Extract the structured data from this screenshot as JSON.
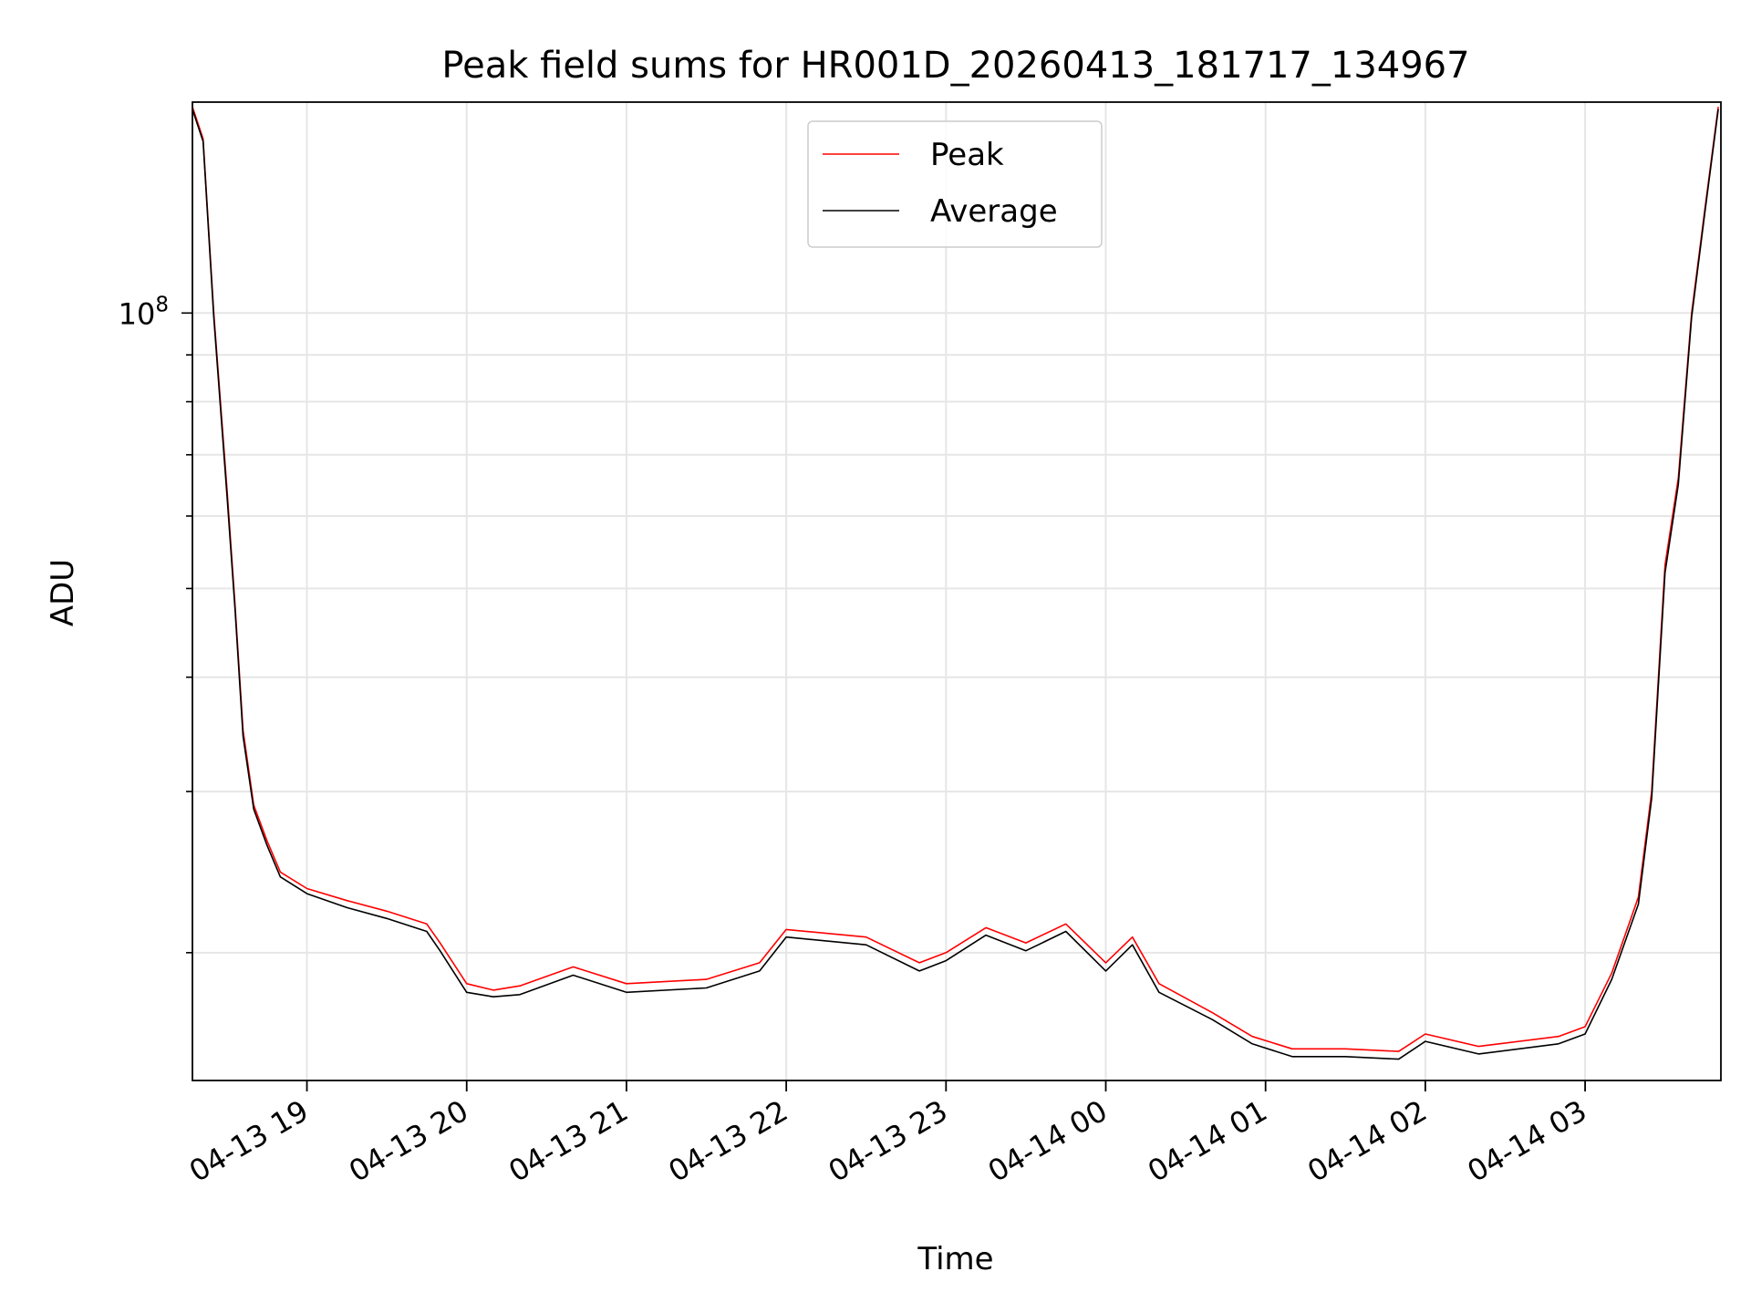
{
  "chart_data": {
    "type": "line",
    "title": "Peak field sums for HR001D_20260413_181717_134967",
    "xlabel": "Time",
    "ylabel": "ADU",
    "y_scale": "log",
    "grid": "major and minor",
    "legend_position": "upper-center",
    "x_range": [
      "04-13 18:17",
      "04-14 03:51"
    ],
    "ylim": [
      14500000,
      170000000
    ],
    "x_ticks": [
      "04-13 19",
      "04-13 20",
      "04-13 21",
      "04-13 22",
      "04-13 23",
      "04-14 00",
      "04-14 01",
      "04-14 02",
      "04-14 03"
    ],
    "y_tick_label_base": "10",
    "y_tick_label_exp": "8",
    "colors": {
      "peak": "#ff0000",
      "average": "#000000",
      "grid": "#e6e6e6"
    },
    "series": [
      {
        "name": "Peak",
        "x": [
          "04-13 18:17",
          "04-13 18:21",
          "04-13 18:25",
          "04-13 18:30",
          "04-13 18:33",
          "04-13 18:36",
          "04-13 18:40",
          "04-13 18:45",
          "04-13 18:50",
          "04-13 19:00",
          "04-13 19:15",
          "04-13 19:30",
          "04-13 19:45",
          "04-13 19:50",
          "04-13 20:00",
          "04-13 20:10",
          "04-13 20:20",
          "04-13 20:40",
          "04-13 21:00",
          "04-13 21:30",
          "04-13 21:50",
          "04-13 22:00",
          "04-13 22:30",
          "04-13 22:50",
          "04-13 23:00",
          "04-13 23:15",
          "04-13 23:30",
          "04-13 23:45",
          "04-14 00:00",
          "04-14 00:10",
          "04-14 00:20",
          "04-14 00:40",
          "04-14 00:55",
          "04-14 01:10",
          "04-14 01:30",
          "04-14 01:50",
          "04-14 02:00",
          "04-14 02:20",
          "04-14 02:50",
          "04-14 03:00",
          "04-14 03:10",
          "04-14 03:20",
          "04-14 03:25",
          "04-14 03:30",
          "04-14 03:35",
          "04-14 03:40",
          "04-14 03:45",
          "04-14 03:50"
        ],
        "values": [
          168000000,
          155000000,
          100000000,
          64000000,
          48000000,
          35000000,
          29000000,
          26500000,
          24500000,
          23500000,
          22800000,
          22200000,
          21500000,
          20500000,
          18500000,
          18200000,
          18400000,
          19300000,
          18500000,
          18700000,
          19500000,
          21200000,
          20800000,
          19500000,
          20000000,
          21300000,
          20500000,
          21500000,
          19500000,
          20800000,
          18500000,
          17200000,
          16200000,
          15700000,
          15700000,
          15600000,
          16300000,
          15800000,
          16200000,
          16600000,
          19000000,
          23000000,
          30000000,
          53000000,
          66000000,
          100000000,
          130000000,
          168000000
        ]
      },
      {
        "name": "Average",
        "x": [
          "04-13 18:17",
          "04-13 18:21",
          "04-13 18:25",
          "04-13 18:30",
          "04-13 18:33",
          "04-13 18:36",
          "04-13 18:40",
          "04-13 18:45",
          "04-13 18:50",
          "04-13 19:00",
          "04-13 19:15",
          "04-13 19:30",
          "04-13 19:45",
          "04-13 19:50",
          "04-13 20:00",
          "04-13 20:10",
          "04-13 20:20",
          "04-13 20:40",
          "04-13 21:00",
          "04-13 21:30",
          "04-13 21:50",
          "04-13 22:00",
          "04-13 22:30",
          "04-13 22:50",
          "04-13 23:00",
          "04-13 23:15",
          "04-13 23:30",
          "04-13 23:45",
          "04-14 00:00",
          "04-14 00:10",
          "04-14 00:20",
          "04-14 00:40",
          "04-14 00:55",
          "04-14 01:10",
          "04-14 01:30",
          "04-14 01:50",
          "04-14 02:00",
          "04-14 02:20",
          "04-14 02:50",
          "04-14 03:00",
          "04-14 03:10",
          "04-14 03:20",
          "04-14 03:25",
          "04-14 03:30",
          "04-14 03:35",
          "04-14 03:40",
          "04-14 03:45",
          "04-14 03:50"
        ],
        "values": [
          167000000,
          154000000,
          99000000,
          63000000,
          47500000,
          34500000,
          28700000,
          26200000,
          24200000,
          23200000,
          22400000,
          21800000,
          21100000,
          20100000,
          18100000,
          17900000,
          18000000,
          18900000,
          18100000,
          18300000,
          19100000,
          20800000,
          20400000,
          19100000,
          19600000,
          20900000,
          20100000,
          21100000,
          19100000,
          20400000,
          18100000,
          16900000,
          15900000,
          15400000,
          15400000,
          15300000,
          16000000,
          15500000,
          15900000,
          16300000,
          18700000,
          22600000,
          29500000,
          52000000,
          65000000,
          99000000,
          129000000,
          167000000
        ]
      }
    ]
  }
}
